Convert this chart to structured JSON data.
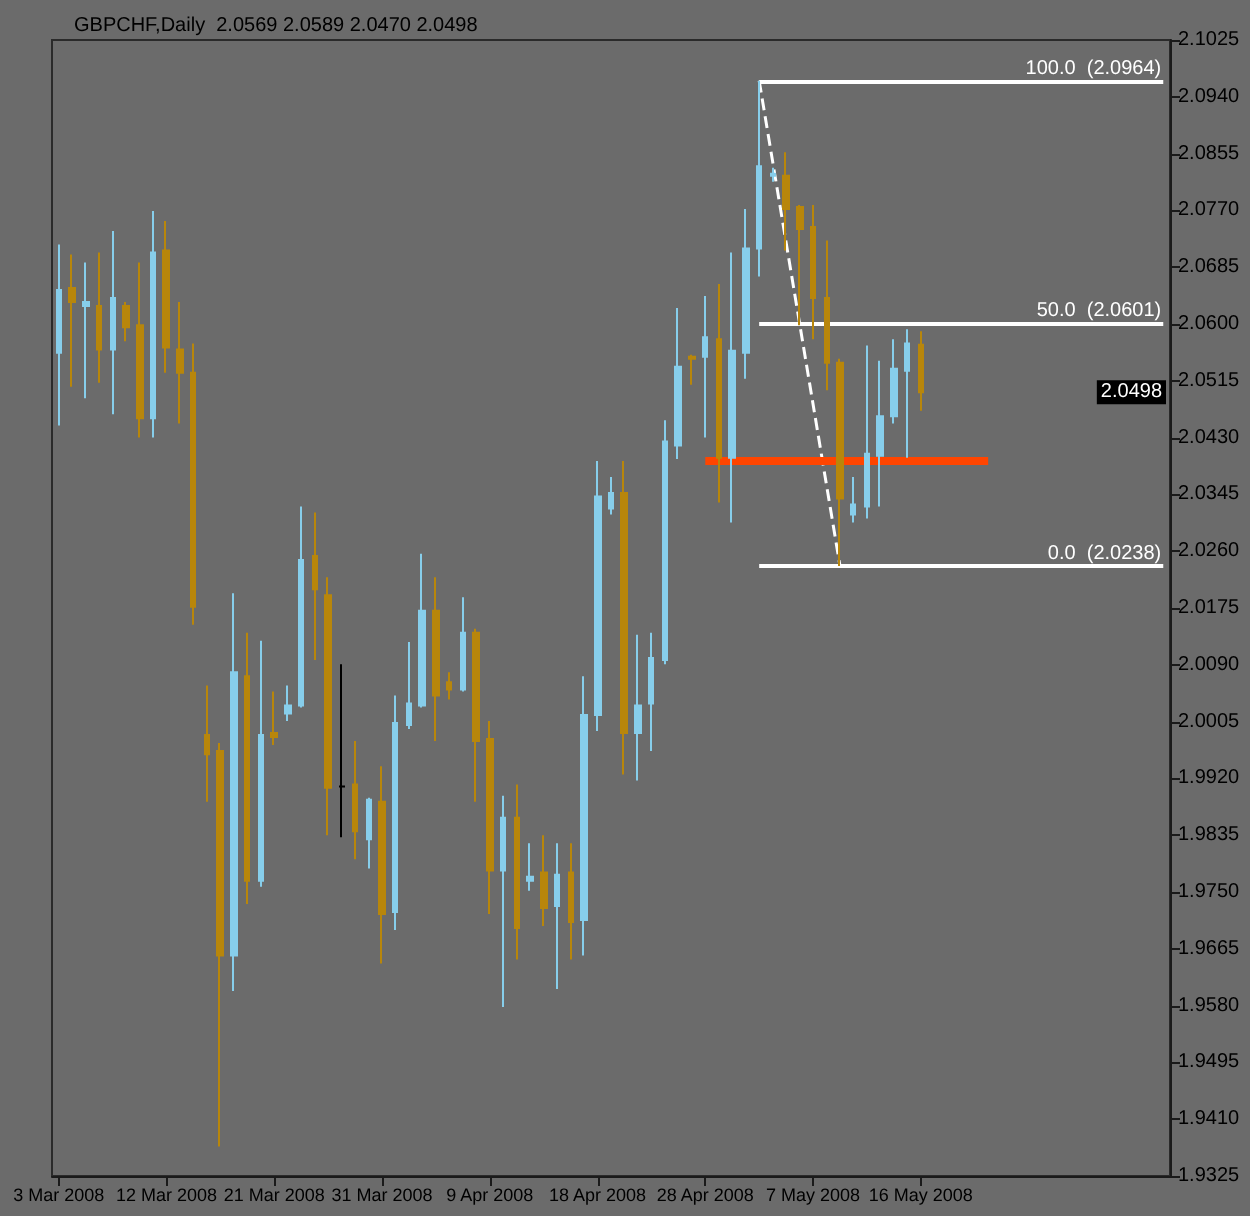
{
  "chart_data": {
    "type": "candlestick",
    "title": "GBPCHF,Daily  2.0569 2.0589 2.0470 2.0498",
    "categories": [
      "3 Mar 2008",
      null,
      null,
      null,
      null,
      null,
      null,
      null,
      "12 Mar 2008",
      null,
      null,
      null,
      null,
      null,
      null,
      null,
      "21 Mar 2008",
      null,
      null,
      null,
      null,
      null,
      null,
      null,
      "31 Mar 2008",
      null,
      null,
      null,
      null,
      null,
      null,
      null,
      "9 Apr 2008",
      null,
      null,
      null,
      null,
      null,
      null,
      null,
      "18 Apr 2008",
      null,
      null,
      null,
      null,
      null,
      null,
      null,
      "28 Apr 2008",
      null,
      null,
      null,
      null,
      null,
      null,
      null,
      "7 May 2008",
      null,
      null,
      null,
      null,
      null,
      null,
      null,
      "16 May 2008",
      null,
      null,
      null,
      null,
      null,
      null,
      null,
      null,
      null,
      null,
      null,
      null,
      null,
      null,
      null,
      null,
      null,
      null
    ],
    "ohlc": [
      [
        2.0557,
        2.0719,
        2.0448,
        2.0651
      ],
      [
        2.0654,
        2.0704,
        2.0506,
        2.0633
      ],
      [
        2.0627,
        2.0692,
        2.0489,
        2.0633
      ],
      [
        2.0627,
        2.0707,
        2.0512,
        2.0562
      ],
      [
        2.0562,
        2.0739,
        2.0465,
        2.0639
      ],
      [
        2.0627,
        2.0633,
        2.0574,
        2.0595
      ],
      [
        2.0598,
        2.0692,
        2.043,
        2.0459
      ],
      [
        2.0459,
        2.0769,
        2.043,
        2.0707
      ],
      [
        2.071,
        2.0754,
        2.0527,
        2.0565
      ],
      [
        2.0562,
        2.0633,
        2.0451,
        2.0527
      ],
      [
        2.0527,
        2.0571,
        2.015,
        2.0177
      ],
      [
        1.9985,
        2.0059,
        1.9885,
        1.9956
      ],
      [
        1.9961,
        1.9973,
        1.9369,
        1.9655
      ],
      [
        1.9655,
        2.0197,
        1.9602,
        2.0079
      ],
      [
        2.0073,
        2.0138,
        1.9732,
        1.9767
      ],
      [
        1.9767,
        2.0126,
        1.9758,
        1.9985
      ],
      [
        1.9988,
        2.005,
        1.997,
        1.9982
      ],
      [
        2.0017,
        2.0059,
        2.0006,
        2.0029
      ],
      [
        2.0029,
        2.0327,
        2.0026,
        2.0247
      ],
      [
        2.0253,
        2.0318,
        2.0097,
        2.0203
      ],
      [
        2.0194,
        2.0221,
        1.9835,
        1.9906
      ],
      [
        1.9908,
        2.0091,
        1.9832,
        1.9908
      ],
      [
        1.9911,
        1.9976,
        1.9799,
        1.9841
      ],
      [
        1.9829,
        1.9891,
        1.9785,
        1.9888
      ],
      [
        1.9885,
        1.9938,
        1.9643,
        1.9717
      ],
      [
        1.972,
        2.0044,
        1.9693,
        2.0003
      ],
      [
        2.0,
        2.0124,
        1.9994,
        2.0032
      ],
      [
        2.0029,
        2.0256,
        2.0026,
        2.0171
      ],
      [
        2.0171,
        2.0221,
        1.9976,
        2.0044
      ],
      [
        2.0064,
        2.0079,
        2.0038,
        2.0053
      ],
      [
        2.0053,
        2.0191,
        2.005,
        2.0138
      ],
      [
        2.0138,
        2.0144,
        1.9885,
        1.9976
      ],
      [
        1.9979,
        2.0006,
        1.9717,
        1.9782
      ],
      [
        1.9782,
        1.9894,
        1.9578,
        1.9861
      ],
      [
        1.9861,
        1.9911,
        1.9649,
        1.9696
      ],
      [
        1.9767,
        1.9823,
        1.9752,
        1.9773
      ],
      [
        1.9779,
        1.9835,
        1.9699,
        1.9726
      ],
      [
        1.9729,
        1.9823,
        1.9605,
        1.9776
      ],
      [
        1.9779,
        1.9823,
        1.9649,
        1.9705
      ],
      [
        1.9708,
        2.0073,
        1.9655,
        2.0015
      ],
      [
        2.0015,
        2.0395,
        1.9991,
        2.0342
      ],
      [
        2.0324,
        2.0371,
        2.0315,
        2.0347
      ],
      [
        2.0347,
        2.0395,
        1.9926,
        1.9988
      ],
      [
        1.9988,
        2.0135,
        1.9917,
        2.0029
      ],
      [
        2.0032,
        2.0138,
        1.9961,
        2.01
      ],
      [
        2.0097,
        2.0456,
        2.0091,
        2.0424
      ],
      [
        2.0418,
        2.0624,
        2.0398,
        2.0536
      ],
      [
        2.0551,
        2.0554,
        2.0509,
        2.0548
      ],
      [
        2.0551,
        2.0642,
        2.043,
        2.058
      ],
      [
        2.0577,
        2.066,
        2.0333,
        2.04
      ],
      [
        2.04,
        2.0707,
        2.0303,
        2.056
      ],
      [
        2.0557,
        2.0772,
        2.0518,
        2.0713
      ],
      [
        2.0713,
        2.0964,
        2.0671,
        2.0836
      ],
      [
        2.0822,
        2.0834,
        2.0813,
        2.0825
      ],
      [
        2.0822,
        2.0857,
        2.071,
        2.0772
      ],
      [
        2.0775,
        2.0778,
        2.0598,
        2.0742
      ],
      [
        2.0745,
        2.0778,
        2.0577,
        2.0639
      ],
      [
        2.0639,
        2.0725,
        2.0501,
        2.0542
      ],
      [
        2.0542,
        2.0548,
        2.0238,
        2.0339
      ],
      [
        2.0315,
        2.0371,
        2.0303,
        2.033
      ],
      [
        2.0327,
        2.0568,
        2.0309,
        2.0406
      ],
      [
        2.0403,
        2.0545,
        2.0327,
        2.0462
      ],
      [
        2.0462,
        2.0577,
        2.0451,
        2.0533
      ],
      [
        2.053,
        2.0592,
        2.04,
        2.0571
      ],
      [
        2.0569,
        2.0589,
        2.047,
        2.0498
      ],
      null,
      null,
      null,
      null,
      null,
      null,
      null,
      null,
      null,
      null,
      null,
      null,
      null,
      null,
      null,
      null,
      null,
      null
    ],
    "colors": [
      "#87ceeb",
      "#b8860b",
      "#87ceeb",
      "#b8860b",
      "#87ceeb",
      "#b8860b",
      "#b8860b",
      "#87ceeb",
      "#b8860b",
      "#b8860b",
      "#b8860b",
      "#b8860b",
      "#b8860b",
      "#87ceeb",
      "#b8860b",
      "#87ceeb",
      "#b8860b",
      "#87ceeb",
      "#87ceeb",
      "#b8860b",
      "#b8860b",
      "#000000",
      "#b8860b",
      "#87ceeb",
      "#b8860b",
      "#87ceeb",
      "#87ceeb",
      "#87ceeb",
      "#b8860b",
      "#b8860b",
      "#87ceeb",
      "#b8860b",
      "#b8860b",
      "#87ceeb",
      "#b8860b",
      "#87ceeb",
      "#b8860b",
      "#87ceeb",
      "#b8860b",
      "#87ceeb",
      "#87ceeb",
      "#87ceeb",
      "#b8860b",
      "#87ceeb",
      "#87ceeb",
      "#87ceeb",
      "#87ceeb",
      "#b8860b",
      "#87ceeb",
      "#b8860b",
      "#87ceeb",
      "#87ceeb",
      "#87ceeb",
      "#87ceeb",
      "#b8860b",
      "#b8860b",
      "#b8860b",
      "#b8860b",
      "#b8860b",
      "#87ceeb",
      "#87ceeb",
      "#87ceeb",
      "#87ceeb",
      "#87ceeb",
      "#b8860b",
      null,
      null,
      null,
      null,
      null,
      null,
      null,
      null,
      null,
      null,
      null,
      null,
      null,
      null,
      null,
      null,
      null,
      null
    ],
    "series": [
      {
        "type": "line",
        "color": "#ffffff",
        "line_style": "dashed",
        "marker": "none",
        "values": [
          null,
          null,
          null,
          null,
          null,
          null,
          null,
          null,
          null,
          null,
          null,
          null,
          null,
          null,
          null,
          null,
          null,
          null,
          null,
          null,
          null,
          null,
          null,
          null,
          null,
          null,
          null,
          null,
          null,
          null,
          null,
          null,
          null,
          null,
          null,
          null,
          null,
          null,
          null,
          null,
          null,
          null,
          null,
          null,
          null,
          null,
          null,
          null,
          null,
          null,
          null,
          null,
          2.0964,
          null,
          null,
          null,
          null,
          null,
          2.0238,
          null,
          null,
          null,
          null,
          null,
          null,
          null,
          null,
          null,
          null,
          null,
          null,
          null,
          null,
          null,
          null,
          null,
          null,
          null,
          null,
          null,
          null,
          null,
          null
        ]
      },
      {
        "type": "line",
        "color": "#ff4500",
        "line_style": "solid",
        "marker": "none",
        "values": [
          null,
          null,
          null,
          null,
          null,
          null,
          null,
          null,
          null,
          null,
          null,
          null,
          null,
          null,
          null,
          null,
          null,
          null,
          null,
          null,
          null,
          null,
          null,
          null,
          null,
          null,
          null,
          null,
          null,
          null,
          null,
          null,
          null,
          null,
          null,
          null,
          null,
          null,
          null,
          null,
          null,
          null,
          null,
          null,
          null,
          null,
          null,
          null,
          2.0395,
          2.0395,
          2.0395,
          2.0395,
          2.0395,
          2.0395,
          2.0395,
          2.0395,
          2.0395,
          2.0395,
          2.0395,
          2.0395,
          2.0395,
          2.0395,
          2.0395,
          2.0395,
          2.0395,
          2.0395,
          2.0395,
          2.0395,
          2.0395,
          2.0395,
          null,
          null,
          null,
          null,
          null,
          null,
          null,
          null,
          null,
          null,
          null,
          null,
          null
        ]
      }
    ],
    "ylim": [
      1.9325,
      2.1025
    ],
    "yticks": [
      1.9325,
      {
        "value": 1.941,
        "label": "1.9410"
      },
      1.9495,
      {
        "value": 1.958,
        "label": "1.9580"
      },
      1.9665,
      {
        "value": 1.975,
        "label": "1.9750"
      },
      1.9835,
      {
        "value": 1.992,
        "label": "1.9920"
      },
      2.0005,
      {
        "value": 2.009,
        "label": "2.0090"
      },
      2.0175,
      {
        "value": 2.026,
        "label": "2.0260"
      },
      2.0345,
      {
        "value": 2.043,
        "label": "2.0430"
      },
      2.0515,
      {
        "value": 2.06,
        "label": "2.0600"
      },
      2.0685,
      {
        "value": 2.077,
        "label": "2.0770"
      },
      2.0855,
      {
        "value": 2.094,
        "label": "2.0940"
      },
      2.1025
    ],
    "ref_lines": [
      {
        "axis": "y",
        "value": 2.0964,
        "label": "100.0  (2.0964)",
        "color": "#ffffff"
      },
      {
        "axis": "y",
        "value": 2.0601,
        "label": "50.0  (2.0601)",
        "color": "#ffffff"
      },
      {
        "axis": "y",
        "value": 2.0238,
        "label": "0.0  (2.0238)",
        "color": "#ffffff"
      }
    ],
    "annotations": [
      {
        "text": "2.0498",
        "y": 2.0498
      }
    ]
  }
}
